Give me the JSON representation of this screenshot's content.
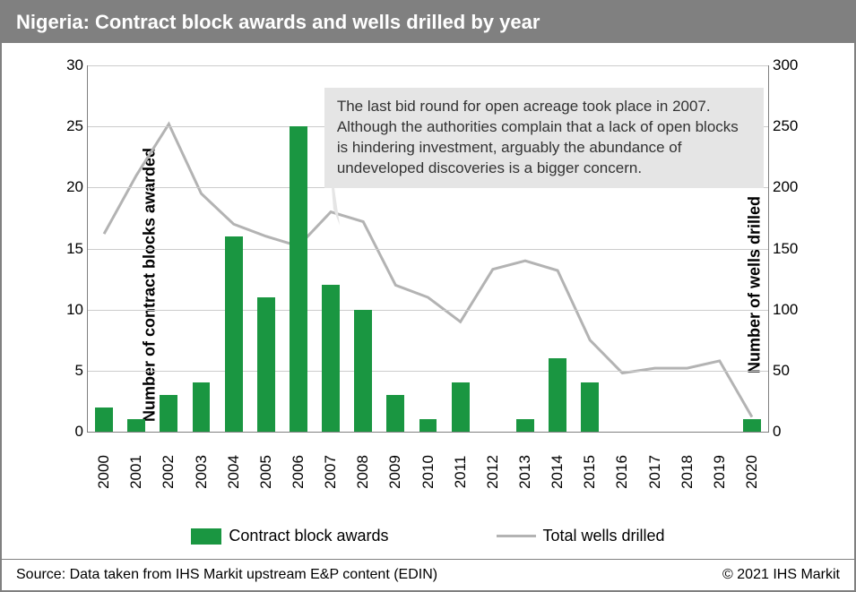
{
  "header": {
    "title": "Nigeria: Contract block awards and wells drilled by year"
  },
  "chart": {
    "type": "bar+line",
    "background_color": "#ffffff",
    "grid_color": "#cccccc",
    "axis_color": "#808080",
    "y_left": {
      "label": "Number of contract blocks awarded",
      "min": 0,
      "max": 30,
      "step": 5,
      "ticks": [
        0,
        5,
        10,
        15,
        20,
        25,
        30
      ],
      "label_fontsize": 18,
      "tick_fontsize": 17
    },
    "y_right": {
      "label": "Number of wells drilled",
      "min": 0,
      "max": 300,
      "step": 50,
      "ticks": [
        0,
        50,
        100,
        150,
        200,
        250,
        300
      ],
      "label_fontsize": 18,
      "tick_fontsize": 17
    },
    "x": {
      "categories": [
        "2000",
        "2001",
        "2002",
        "2003",
        "2004",
        "2005",
        "2006",
        "2007",
        "2008",
        "2009",
        "2010",
        "2011",
        "2012",
        "2013",
        "2014",
        "2015",
        "2016",
        "2017",
        "2018",
        "2019",
        "2020"
      ],
      "tick_fontsize": 17,
      "rotation": -90
    },
    "bars": {
      "name": "Contract block awards",
      "color": "#1a9641",
      "width_ratio": 0.55,
      "values": [
        2,
        1,
        3,
        4,
        16,
        11,
        25,
        12,
        10,
        3,
        1,
        4,
        0,
        1,
        6,
        4,
        0,
        0,
        0,
        0,
        1
      ]
    },
    "line": {
      "name": "Total wells drilled",
      "color": "#b3b3b3",
      "width": 3,
      "values": [
        162,
        210,
        252,
        195,
        170,
        160,
        152,
        180,
        172,
        120,
        110,
        90,
        133,
        140,
        132,
        75,
        48,
        52,
        52,
        58,
        12
      ]
    },
    "callout": {
      "text": "The last bid round for open acreage took place in 2007. Although the authorities complain that a lack of open blocks is hindering investment, arguably the abundance of undeveloped discoveries is a bigger concern.",
      "background": "#e5e5e5",
      "fontsize": 17,
      "text_color": "#333333",
      "points_to_year": "2007"
    }
  },
  "legend": {
    "items": [
      {
        "type": "bar",
        "label": "Contract block awards",
        "color": "#1a9641"
      },
      {
        "type": "line",
        "label": "Total wells drilled",
        "color": "#b3b3b3"
      }
    ],
    "fontsize": 18
  },
  "footer": {
    "source": "Source: Data taken from IHS Markit upstream E&P content (EDIN)",
    "copyright": "© 2021 IHS Markit",
    "fontsize": 16
  }
}
